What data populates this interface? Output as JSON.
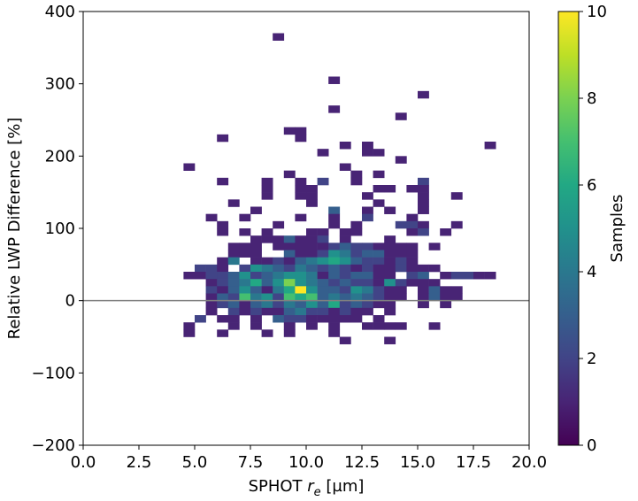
{
  "chart_data": {
    "type": "heatmap",
    "title": "",
    "xlabel": "SPHOT r_e [µm]",
    "xlabel_parts": {
      "pre": "SPHOT ",
      "r": "r",
      "sub": "e",
      "post": " [µm]"
    },
    "ylabel": "Relative LWP Difference [%]",
    "xlim": [
      0,
      20
    ],
    "ylim": [
      -200,
      400
    ],
    "xticks": [
      0,
      2.5,
      5,
      7.5,
      10,
      12.5,
      15,
      17.5,
      20
    ],
    "xtick_labels": [
      "0.0",
      "2.5",
      "5.0",
      "7.5",
      "10.0",
      "12.5",
      "15.0",
      "17.5",
      "20.0"
    ],
    "yticks": [
      -200,
      -100,
      0,
      100,
      200,
      300,
      400
    ],
    "ytick_labels": [
      "−200",
      "−100",
      "0",
      "100",
      "200",
      "300",
      "400"
    ],
    "bin_width_x": 0.5,
    "bin_height_y": 10,
    "reference_line": {
      "y": 0,
      "color": "#808080"
    },
    "colorbar": {
      "label": "Samples",
      "vmin": 0,
      "vmax": 10,
      "ticks": [
        0,
        2,
        4,
        6,
        8,
        10
      ],
      "tick_labels": [
        "0",
        "2",
        "4",
        "6",
        "8",
        "10"
      ],
      "colormap": "viridis"
    },
    "cells": [
      [
        8.5,
        360,
        1
      ],
      [
        11,
        300,
        1
      ],
      [
        15,
        280,
        1
      ],
      [
        11,
        260,
        1
      ],
      [
        14,
        250,
        1
      ],
      [
        9,
        230,
        1
      ],
      [
        9.5,
        230,
        1
      ],
      [
        9.5,
        220,
        1
      ],
      [
        6,
        220,
        1
      ],
      [
        11.5,
        210,
        1
      ],
      [
        12.5,
        210,
        1
      ],
      [
        18,
        210,
        1
      ],
      [
        10.5,
        200,
        1
      ],
      [
        12.5,
        200,
        1
      ],
      [
        13,
        200,
        1
      ],
      [
        14,
        190,
        1
      ],
      [
        4.5,
        180,
        1
      ],
      [
        11.5,
        180,
        1
      ],
      [
        9,
        170,
        1
      ],
      [
        12,
        170,
        1
      ],
      [
        13,
        170,
        1
      ],
      [
        6,
        160,
        1
      ],
      [
        8,
        160,
        1
      ],
      [
        9.5,
        160,
        1
      ],
      [
        10.5,
        160,
        2
      ],
      [
        12,
        160,
        1
      ],
      [
        15,
        160,
        2
      ],
      [
        8,
        150,
        1
      ],
      [
        9.5,
        150,
        1
      ],
      [
        10,
        150,
        1
      ],
      [
        13,
        150,
        1
      ],
      [
        13.5,
        150,
        1
      ],
      [
        14.5,
        150,
        1
      ],
      [
        15,
        150,
        1
      ],
      [
        8,
        140,
        1
      ],
      [
        9.5,
        140,
        1
      ],
      [
        10,
        140,
        1
      ],
      [
        12.5,
        140,
        1
      ],
      [
        15,
        140,
        1
      ],
      [
        16.5,
        140,
        1
      ],
      [
        6.5,
        130,
        1
      ],
      [
        10,
        130,
        1
      ],
      [
        13,
        130,
        1
      ],
      [
        15,
        130,
        1
      ],
      [
        7.5,
        120,
        1
      ],
      [
        11,
        120,
        3
      ],
      [
        12.5,
        120,
        1
      ],
      [
        13.5,
        120,
        1
      ],
      [
        15,
        120,
        1
      ],
      [
        5.5,
        110,
        1
      ],
      [
        7,
        110,
        1
      ],
      [
        9.5,
        110,
        1
      ],
      [
        11,
        110,
        1
      ],
      [
        12.5,
        110,
        2
      ],
      [
        14.5,
        110,
        1
      ],
      [
        6,
        100,
        1
      ],
      [
        8.5,
        100,
        1
      ],
      [
        11,
        100,
        1
      ],
      [
        12,
        100,
        1
      ],
      [
        14,
        100,
        2
      ],
      [
        14.5,
        100,
        2
      ],
      [
        15,
        100,
        1
      ],
      [
        16.5,
        100,
        1
      ],
      [
        6,
        90,
        1
      ],
      [
        7,
        90,
        1
      ],
      [
        8,
        90,
        1
      ],
      [
        10,
        90,
        1
      ],
      [
        10.5,
        90,
        1
      ],
      [
        11.5,
        90,
        1
      ],
      [
        12,
        90,
        1
      ],
      [
        14.5,
        90,
        1
      ],
      [
        15,
        90,
        2
      ],
      [
        16,
        90,
        1
      ],
      [
        7.5,
        80,
        1
      ],
      [
        8,
        80,
        1
      ],
      [
        8.5,
        80,
        1
      ],
      [
        9,
        80,
        3
      ],
      [
        9.5,
        80,
        1
      ],
      [
        10,
        80,
        1
      ],
      [
        10.5,
        80,
        2
      ],
      [
        11.5,
        80,
        1
      ],
      [
        13.5,
        80,
        1
      ],
      [
        6.5,
        70,
        1
      ],
      [
        7,
        70,
        1
      ],
      [
        7.5,
        70,
        1
      ],
      [
        8.5,
        70,
        1
      ],
      [
        9,
        70,
        1
      ],
      [
        9.5,
        70,
        1
      ],
      [
        10,
        70,
        1
      ],
      [
        10.5,
        70,
        1
      ],
      [
        11,
        70,
        2
      ],
      [
        11.5,
        70,
        3
      ],
      [
        12,
        70,
        2
      ],
      [
        12.5,
        70,
        2
      ],
      [
        13,
        70,
        1
      ],
      [
        13.5,
        70,
        1
      ],
      [
        14,
        70,
        1
      ],
      [
        14.5,
        70,
        1
      ],
      [
        15.5,
        70,
        1
      ],
      [
        6.5,
        60,
        1
      ],
      [
        7,
        60,
        1
      ],
      [
        7.5,
        60,
        1
      ],
      [
        9,
        60,
        3
      ],
      [
        9.5,
        60,
        1
      ],
      [
        10,
        60,
        1
      ],
      [
        10.5,
        60,
        2
      ],
      [
        11,
        60,
        5
      ],
      [
        11.5,
        60,
        4
      ],
      [
        12,
        60,
        2
      ],
      [
        12.5,
        60,
        3
      ],
      [
        13,
        60,
        3
      ],
      [
        13.5,
        60,
        1
      ],
      [
        14,
        60,
        1
      ],
      [
        14.5,
        60,
        1
      ],
      [
        6,
        50,
        1
      ],
      [
        6.5,
        50,
        4
      ],
      [
        7.5,
        50,
        1
      ],
      [
        8,
        50,
        1
      ],
      [
        8.5,
        50,
        2
      ],
      [
        9,
        50,
        1
      ],
      [
        9.5,
        50,
        3
      ],
      [
        10,
        50,
        4
      ],
      [
        10.5,
        50,
        5
      ],
      [
        11,
        50,
        6
      ],
      [
        11.5,
        50,
        5
      ],
      [
        12,
        50,
        3
      ],
      [
        12.5,
        50,
        2
      ],
      [
        13,
        50,
        2
      ],
      [
        13.5,
        50,
        1
      ],
      [
        14,
        50,
        2
      ],
      [
        14.5,
        50,
        1
      ],
      [
        5,
        40,
        2
      ],
      [
        5.5,
        40,
        2
      ],
      [
        6,
        40,
        1
      ],
      [
        7,
        40,
        2
      ],
      [
        7.5,
        40,
        5
      ],
      [
        8,
        40,
        4
      ],
      [
        8.5,
        40,
        3
      ],
      [
        9,
        40,
        2
      ],
      [
        9.5,
        40,
        4
      ],
      [
        10,
        40,
        3
      ],
      [
        10.5,
        40,
        2
      ],
      [
        11,
        40,
        3
      ],
      [
        11.5,
        40,
        2
      ],
      [
        12,
        40,
        1
      ],
      [
        12.5,
        40,
        2
      ],
      [
        13,
        40,
        1
      ],
      [
        13.5,
        40,
        1
      ],
      [
        14,
        40,
        2
      ],
      [
        14.5,
        40,
        1
      ],
      [
        15,
        40,
        1
      ],
      [
        15.5,
        40,
        1
      ],
      [
        4.5,
        30,
        1
      ],
      [
        5,
        30,
        1
      ],
      [
        5.5,
        30,
        2
      ],
      [
        6,
        30,
        2
      ],
      [
        6.5,
        30,
        3
      ],
      [
        7,
        30,
        5
      ],
      [
        7.5,
        30,
        2
      ],
      [
        8,
        30,
        3
      ],
      [
        8.5,
        30,
        4
      ],
      [
        9,
        30,
        5
      ],
      [
        9.5,
        30,
        5
      ],
      [
        10,
        30,
        4
      ],
      [
        10.5,
        30,
        1
      ],
      [
        11,
        30,
        3
      ],
      [
        11.5,
        30,
        2
      ],
      [
        12,
        30,
        3
      ],
      [
        12.5,
        30,
        3
      ],
      [
        13,
        30,
        1
      ],
      [
        13.5,
        30,
        1
      ],
      [
        14.5,
        30,
        2
      ],
      [
        15,
        30,
        3
      ],
      [
        16,
        30,
        1
      ],
      [
        16.5,
        30,
        2
      ],
      [
        17,
        30,
        2
      ],
      [
        17.5,
        30,
        1
      ],
      [
        18,
        30,
        1
      ],
      [
        5.5,
        20,
        1
      ],
      [
        6,
        20,
        2
      ],
      [
        6.5,
        20,
        3
      ],
      [
        7,
        20,
        4
      ],
      [
        7.5,
        20,
        6
      ],
      [
        8,
        20,
        3
      ],
      [
        8.5,
        20,
        5
      ],
      [
        9,
        20,
        8
      ],
      [
        9.5,
        20,
        5
      ],
      [
        10,
        20,
        4
      ],
      [
        10.5,
        20,
        3
      ],
      [
        11,
        20,
        2
      ],
      [
        11.5,
        20,
        3
      ],
      [
        12,
        20,
        2
      ],
      [
        12.5,
        20,
        2
      ],
      [
        13,
        20,
        1
      ],
      [
        13.5,
        20,
        5
      ],
      [
        14,
        20,
        2
      ],
      [
        14.5,
        20,
        1
      ],
      [
        15,
        20,
        1
      ],
      [
        15.5,
        20,
        1
      ],
      [
        5.5,
        10,
        2
      ],
      [
        6,
        10,
        1
      ],
      [
        6.5,
        10,
        3
      ],
      [
        7,
        10,
        5
      ],
      [
        7.5,
        10,
        3
      ],
      [
        8,
        10,
        1
      ],
      [
        8.5,
        10,
        4
      ],
      [
        9,
        10,
        6
      ],
      [
        9.5,
        10,
        10
      ],
      [
        10,
        10,
        5
      ],
      [
        10.5,
        10,
        3
      ],
      [
        11,
        10,
        3
      ],
      [
        11.5,
        10,
        2
      ],
      [
        12,
        10,
        5
      ],
      [
        12.5,
        10,
        4
      ],
      [
        13,
        10,
        2
      ],
      [
        13.5,
        10,
        1
      ],
      [
        14,
        10,
        1
      ],
      [
        15,
        10,
        1
      ],
      [
        15.5,
        10,
        3
      ],
      [
        16,
        10,
        1
      ],
      [
        16.5,
        10,
        1
      ],
      [
        5.5,
        0,
        1
      ],
      [
        6,
        0,
        3
      ],
      [
        6.5,
        0,
        2
      ],
      [
        7,
        0,
        7
      ],
      [
        7.5,
        0,
        4
      ],
      [
        8,
        0,
        5
      ],
      [
        8.5,
        0,
        2
      ],
      [
        9,
        0,
        7
      ],
      [
        9.5,
        0,
        6
      ],
      [
        10,
        0,
        7
      ],
      [
        10.5,
        0,
        3
      ],
      [
        11,
        0,
        4
      ],
      [
        11.5,
        0,
        3
      ],
      [
        12,
        0,
        4
      ],
      [
        12.5,
        0,
        3
      ],
      [
        13,
        0,
        2
      ],
      [
        13.5,
        0,
        1
      ],
      [
        14,
        0,
        1
      ],
      [
        15,
        0,
        1
      ],
      [
        15.5,
        0,
        3
      ],
      [
        16,
        0,
        1
      ],
      [
        16.5,
        0,
        1
      ],
      [
        5.5,
        -10,
        1
      ],
      [
        6,
        -10,
        2
      ],
      [
        6.5,
        -10,
        3
      ],
      [
        7,
        -10,
        1
      ],
      [
        7.5,
        -10,
        3
      ],
      [
        8,
        -10,
        4
      ],
      [
        8.5,
        -10,
        2
      ],
      [
        9,
        -10,
        4
      ],
      [
        9.5,
        -10,
        3
      ],
      [
        10,
        -10,
        5
      ],
      [
        10.5,
        -10,
        3
      ],
      [
        11,
        -10,
        6
      ],
      [
        11.5,
        -10,
        2
      ],
      [
        12,
        -10,
        3
      ],
      [
        12.5,
        -10,
        2
      ],
      [
        13,
        -10,
        1
      ],
      [
        13.5,
        -10,
        1
      ],
      [
        15,
        -10,
        1
      ],
      [
        16,
        -10,
        1
      ],
      [
        5.5,
        -20,
        1
      ],
      [
        6.5,
        -20,
        2
      ],
      [
        7,
        -20,
        1
      ],
      [
        7.5,
        -20,
        2
      ],
      [
        8,
        -20,
        1
      ],
      [
        8.5,
        -20,
        1
      ],
      [
        9,
        -20,
        3
      ],
      [
        9.5,
        -20,
        4
      ],
      [
        10,
        -20,
        2
      ],
      [
        10.5,
        -20,
        2
      ],
      [
        11,
        -20,
        1
      ],
      [
        11.5,
        -20,
        2
      ],
      [
        12,
        -20,
        1
      ],
      [
        12.5,
        -20,
        1
      ],
      [
        13.5,
        -20,
        1
      ],
      [
        5,
        -30,
        2
      ],
      [
        6,
        -30,
        1
      ],
      [
        6.5,
        -30,
        1
      ],
      [
        7.5,
        -30,
        1
      ],
      [
        8.5,
        -30,
        3
      ],
      [
        9,
        -30,
        2
      ],
      [
        9.5,
        -30,
        2
      ],
      [
        10,
        -30,
        1
      ],
      [
        10.5,
        -30,
        1
      ],
      [
        11,
        -30,
        1
      ],
      [
        11.5,
        -30,
        1
      ],
      [
        12,
        -30,
        1
      ],
      [
        13,
        -30,
        1
      ],
      [
        4.5,
        -40,
        1
      ],
      [
        6.5,
        -40,
        1
      ],
      [
        7.5,
        -40,
        1
      ],
      [
        9,
        -40,
        1
      ],
      [
        10,
        -40,
        1
      ],
      [
        11,
        -40,
        1
      ],
      [
        12.5,
        -40,
        1
      ],
      [
        13,
        -40,
        1
      ],
      [
        13.5,
        -40,
        1
      ],
      [
        14,
        -40,
        1
      ],
      [
        15.5,
        -40,
        1
      ],
      [
        4.5,
        -50,
        1
      ],
      [
        6,
        -50,
        1
      ],
      [
        8,
        -50,
        1
      ],
      [
        9,
        -50,
        1
      ],
      [
        11,
        -50,
        1
      ],
      [
        11.5,
        -60,
        1
      ],
      [
        13.5,
        -60,
        1
      ]
    ]
  }
}
